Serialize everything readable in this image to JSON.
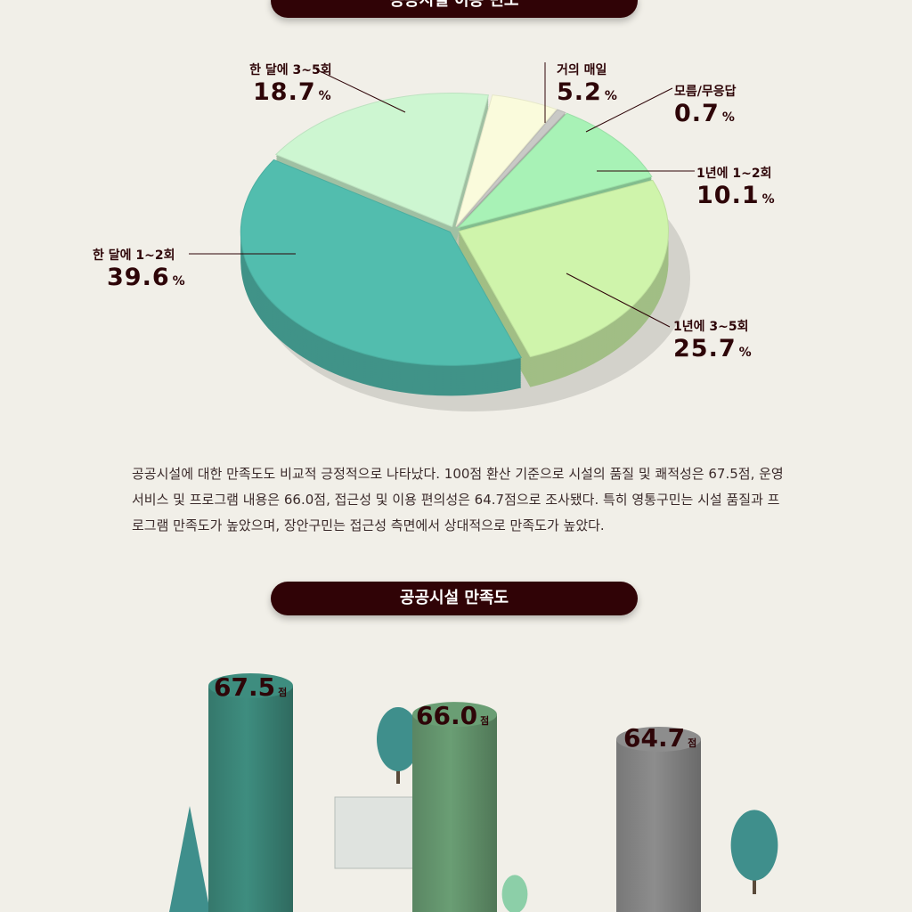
{
  "chart_data": [
    {
      "type": "pie",
      "title": "공공시설 이용 빈도",
      "slices": [
        {
          "label": "거의 매일",
          "value": 5.2,
          "color": "#fafbdc"
        },
        {
          "label": "모름/무응답",
          "value": 0.7,
          "color": "#c9c9c6"
        },
        {
          "label": "1년에 1~2회",
          "value": 10.1,
          "color": "#a8f2b6"
        },
        {
          "label": "1년에 3~5회",
          "value": 25.7,
          "color": "#cff4ab"
        },
        {
          "label": "한 달에 1~2회",
          "value": 39.6,
          "color": "#52bdae"
        },
        {
          "label": "한 달에 3~5회",
          "value": 18.7,
          "color": "#cdf6d1"
        }
      ],
      "unit": "%"
    },
    {
      "type": "bar",
      "title": "공공시설 만족도",
      "unit": "점",
      "categories": [
        "시설의 품질 및 쾌적성",
        "운영 서비스 및 프로그램 내용",
        "접근성 및 이용 편의성"
      ],
      "values": [
        67.5,
        66.0,
        64.7
      ],
      "colors": [
        "#3e8d7f",
        "#6a9e74",
        "#8d8d8d"
      ],
      "value_labels": [
        "67.5",
        "66.0",
        "64.7"
      ]
    }
  ],
  "paragraph": "공공시설에 대한 만족도도 비교적 긍정적으로 나타났다. 100점 환산 기준으로 시설의 품질 및 쾌적성은 67.5점, 운영 서비스 및 프로그램 내용은 66.0점, 접근성 및 이용 편의성은 64.7점으로 조사됐다. 특히 영통구민는 시설 품질과 프로그램 만족도가 높았으며, 장안구민는 접근성 측면에서 상대적으로 만족도가 높았다.",
  "labels": {
    "pct": "%",
    "score": "점",
    "s0": "5.2",
    "s1": "0.7",
    "s2": "10.1",
    "s3": "25.7",
    "s4": "39.6",
    "s5": "18.7"
  }
}
